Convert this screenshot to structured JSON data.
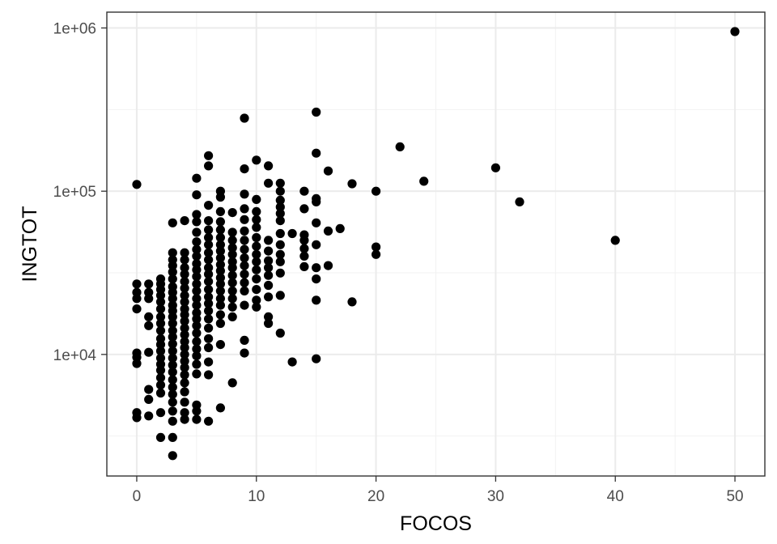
{
  "chart_data": {
    "type": "scatter",
    "xlabel": "FOCOS",
    "ylabel": "INGTOT",
    "x_scale": "linear",
    "y_scale": "log10",
    "xlim": [
      -2.5,
      52.5
    ],
    "ylim": [
      1800,
      1250000
    ],
    "x_ticks": [
      0,
      10,
      20,
      30,
      40,
      50
    ],
    "x_tick_labels": [
      "0",
      "10",
      "20",
      "30",
      "40",
      "50"
    ],
    "x_minor_ticks": [
      5,
      15,
      25,
      35,
      45
    ],
    "y_ticks": [
      10000,
      100000,
      1000000
    ],
    "y_tick_labels": [
      "1e+04",
      "1e+05",
      "1e+06"
    ],
    "y_minor_ticks": [
      3162,
      31623,
      316228
    ],
    "grid": true,
    "legend": "none",
    "point_color": "#000000",
    "points": [
      [
        0,
        110000
      ],
      [
        0,
        27000
      ],
      [
        0,
        24000
      ],
      [
        0,
        22000
      ],
      [
        0,
        19000
      ],
      [
        0,
        10200
      ],
      [
        0,
        9600
      ],
      [
        0,
        8800
      ],
      [
        0,
        4400
      ],
      [
        0,
        4100
      ],
      [
        1,
        27000
      ],
      [
        1,
        24000
      ],
      [
        1,
        22000
      ],
      [
        1,
        17000
      ],
      [
        1,
        15000
      ],
      [
        1,
        10300
      ],
      [
        1,
        6100
      ],
      [
        1,
        5300
      ],
      [
        1,
        4200
      ],
      [
        2,
        29000
      ],
      [
        2,
        27000
      ],
      [
        2,
        25000
      ],
      [
        2,
        23000
      ],
      [
        2,
        21000
      ],
      [
        2,
        19000
      ],
      [
        2,
        17000
      ],
      [
        2,
        15500
      ],
      [
        2,
        14000
      ],
      [
        2,
        12500
      ],
      [
        2,
        11500
      ],
      [
        2,
        10500
      ],
      [
        2,
        9500
      ],
      [
        2,
        8700
      ],
      [
        2,
        8000
      ],
      [
        2,
        7200
      ],
      [
        2,
        6500
      ],
      [
        2,
        5800
      ],
      [
        2,
        4400
      ],
      [
        2,
        3100
      ],
      [
        3,
        64000
      ],
      [
        3,
        42000
      ],
      [
        3,
        38000
      ],
      [
        3,
        35000
      ],
      [
        3,
        32000
      ],
      [
        3,
        29000
      ],
      [
        3,
        26000
      ],
      [
        3,
        24000
      ],
      [
        3,
        22000
      ],
      [
        3,
        20000
      ],
      [
        3,
        18500
      ],
      [
        3,
        17000
      ],
      [
        3,
        15500
      ],
      [
        3,
        14000
      ],
      [
        3,
        12800
      ],
      [
        3,
        11600
      ],
      [
        3,
        10500
      ],
      [
        3,
        9500
      ],
      [
        3,
        8600
      ],
      [
        3,
        7800
      ],
      [
        3,
        7000
      ],
      [
        3,
        6300
      ],
      [
        3,
        5700
      ],
      [
        3,
        5100
      ],
      [
        3,
        4500
      ],
      [
        3,
        3900
      ],
      [
        3,
        3100
      ],
      [
        3,
        2400
      ],
      [
        4,
        66000
      ],
      [
        4,
        42000
      ],
      [
        4,
        38000
      ],
      [
        4,
        34000
      ],
      [
        4,
        31000
      ],
      [
        4,
        28000
      ],
      [
        4,
        25500
      ],
      [
        4,
        23000
      ],
      [
        4,
        21000
      ],
      [
        4,
        19000
      ],
      [
        4,
        17500
      ],
      [
        4,
        16000
      ],
      [
        4,
        14500
      ],
      [
        4,
        13200
      ],
      [
        4,
        12000
      ],
      [
        4,
        11000
      ],
      [
        4,
        10000
      ],
      [
        4,
        9100
      ],
      [
        4,
        8300
      ],
      [
        4,
        7500
      ],
      [
        4,
        6700
      ],
      [
        4,
        5900
      ],
      [
        4,
        5100
      ],
      [
        4,
        4400
      ],
      [
        4,
        4000
      ],
      [
        5,
        120000
      ],
      [
        5,
        95000
      ],
      [
        5,
        72000
      ],
      [
        5,
        65000
      ],
      [
        5,
        56000
      ],
      [
        5,
        49000
      ],
      [
        5,
        44000
      ],
      [
        5,
        40000
      ],
      [
        5,
        36000
      ],
      [
        5,
        33000
      ],
      [
        5,
        30000
      ],
      [
        5,
        27000
      ],
      [
        5,
        24500
      ],
      [
        5,
        22000
      ],
      [
        5,
        20000
      ],
      [
        5,
        18000
      ],
      [
        5,
        16500
      ],
      [
        5,
        15000
      ],
      [
        5,
        13500
      ],
      [
        5,
        12000
      ],
      [
        5,
        10800
      ],
      [
        5,
        9800
      ],
      [
        5,
        8700
      ],
      [
        5,
        7600
      ],
      [
        5,
        4900
      ],
      [
        5,
        4500
      ],
      [
        5,
        4000
      ],
      [
        6,
        165000
      ],
      [
        6,
        143000
      ],
      [
        6,
        82000
      ],
      [
        6,
        66000
      ],
      [
        6,
        58000
      ],
      [
        6,
        52000
      ],
      [
        6,
        47000
      ],
      [
        6,
        42000
      ],
      [
        6,
        38000
      ],
      [
        6,
        34000
      ],
      [
        6,
        31000
      ],
      [
        6,
        28000
      ],
      [
        6,
        25000
      ],
      [
        6,
        22500
      ],
      [
        6,
        20500
      ],
      [
        6,
        18500
      ],
      [
        6,
        16500
      ],
      [
        6,
        14500
      ],
      [
        6,
        12500
      ],
      [
        6,
        11000
      ],
      [
        6,
        9000
      ],
      [
        6,
        7500
      ],
      [
        6,
        3900
      ],
      [
        7,
        100000
      ],
      [
        7,
        92000
      ],
      [
        7,
        75000
      ],
      [
        7,
        65000
      ],
      [
        7,
        58000
      ],
      [
        7,
        52000
      ],
      [
        7,
        47000
      ],
      [
        7,
        43000
      ],
      [
        7,
        39000
      ],
      [
        7,
        35500
      ],
      [
        7,
        32500
      ],
      [
        7,
        29500
      ],
      [
        7,
        27000
      ],
      [
        7,
        24500
      ],
      [
        7,
        22000
      ],
      [
        7,
        20000
      ],
      [
        7,
        17500
      ],
      [
        7,
        15500
      ],
      [
        7,
        11500
      ],
      [
        7,
        4700
      ],
      [
        8,
        74000
      ],
      [
        8,
        56000
      ],
      [
        8,
        50000
      ],
      [
        8,
        45000
      ],
      [
        8,
        41000
      ],
      [
        8,
        37000
      ],
      [
        8,
        34000
      ],
      [
        8,
        30500
      ],
      [
        8,
        27500
      ],
      [
        8,
        24500
      ],
      [
        8,
        22000
      ],
      [
        8,
        19500
      ],
      [
        8,
        17000
      ],
      [
        8,
        6700
      ],
      [
        9,
        280000
      ],
      [
        9,
        137000
      ],
      [
        9,
        96000
      ],
      [
        9,
        78000
      ],
      [
        9,
        67000
      ],
      [
        9,
        57000
      ],
      [
        9,
        50000
      ],
      [
        9,
        44000
      ],
      [
        9,
        39000
      ],
      [
        9,
        35000
      ],
      [
        9,
        31000
      ],
      [
        9,
        27500
      ],
      [
        9,
        24500
      ],
      [
        9,
        20000
      ],
      [
        9,
        12200
      ],
      [
        9,
        10200
      ],
      [
        10,
        155000
      ],
      [
        10,
        89000
      ],
      [
        10,
        75000
      ],
      [
        10,
        67000
      ],
      [
        10,
        60000
      ],
      [
        10,
        52000
      ],
      [
        10,
        46000
      ],
      [
        10,
        41000
      ],
      [
        10,
        37000
      ],
      [
        10,
        33000
      ],
      [
        10,
        29000
      ],
      [
        10,
        25000
      ],
      [
        10,
        21500
      ],
      [
        10,
        19500
      ],
      [
        11,
        143000
      ],
      [
        11,
        112000
      ],
      [
        11,
        50000
      ],
      [
        11,
        43000
      ],
      [
        11,
        37500
      ],
      [
        11,
        34000
      ],
      [
        11,
        30500
      ],
      [
        11,
        26500
      ],
      [
        11,
        22500
      ],
      [
        11,
        17000
      ],
      [
        11,
        15500
      ],
      [
        12,
        112000
      ],
      [
        12,
        100000
      ],
      [
        12,
        88000
      ],
      [
        12,
        80000
      ],
      [
        12,
        73000
      ],
      [
        12,
        66000
      ],
      [
        12,
        55000
      ],
      [
        12,
        47000
      ],
      [
        12,
        41000
      ],
      [
        12,
        37000
      ],
      [
        12,
        31500
      ],
      [
        12,
        23000
      ],
      [
        12,
        13500
      ],
      [
        13,
        55000
      ],
      [
        13,
        9000
      ],
      [
        14,
        100000
      ],
      [
        14,
        78000
      ],
      [
        14,
        54000
      ],
      [
        14,
        50000
      ],
      [
        14,
        44500
      ],
      [
        14,
        40000
      ],
      [
        14,
        34500
      ],
      [
        15,
        305000
      ],
      [
        15,
        171000
      ],
      [
        15,
        90000
      ],
      [
        15,
        86000
      ],
      [
        15,
        64000
      ],
      [
        15,
        47000
      ],
      [
        15,
        34000
      ],
      [
        15,
        29000
      ],
      [
        15,
        21500
      ],
      [
        15,
        9400
      ],
      [
        16,
        133000
      ],
      [
        16,
        57000
      ],
      [
        16,
        35000
      ],
      [
        17,
        59000
      ],
      [
        18,
        111000
      ],
      [
        18,
        21000
      ],
      [
        20,
        100000
      ],
      [
        20,
        45500
      ],
      [
        20,
        41000
      ],
      [
        22,
        187000
      ],
      [
        24,
        115000
      ],
      [
        30,
        139000
      ],
      [
        32,
        86000
      ],
      [
        40,
        50000
      ],
      [
        50,
        950000
      ]
    ]
  }
}
